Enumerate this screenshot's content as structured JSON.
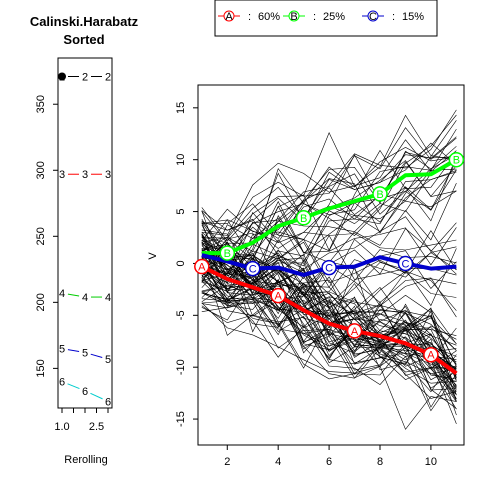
{
  "chart_data": [
    {
      "type": "line",
      "title": "Calinski.Harabatz",
      "subtitle": "Sorted",
      "xlabel": "Rerolling",
      "ylabel": "",
      "xlim": [
        1,
        3
      ],
      "ylim": [
        120,
        385
      ],
      "x_ticks": [
        "1.0",
        "2.5"
      ],
      "y_ticks": [
        "150",
        "200",
        "250",
        "300",
        "350"
      ],
      "x": [
        1,
        2,
        3
      ],
      "series": [
        {
          "label": "2",
          "color": "#000000",
          "values": [
            371,
            371,
            371
          ]
        },
        {
          "label": "3",
          "color": "#ff0000",
          "values": [
            297,
            297,
            297
          ]
        },
        {
          "label": "4",
          "color": "#00cc00",
          "values": [
            207,
            204,
            204
          ]
        },
        {
          "label": "5",
          "color": "#0000cc",
          "values": [
            165,
            162,
            157
          ]
        },
        {
          "label": "6",
          "color": "#00cccc",
          "values": [
            140,
            133,
            125
          ]
        }
      ]
    },
    {
      "type": "line",
      "title": "",
      "xlabel": "",
      "ylabel": "V",
      "xlim": [
        0.85,
        11.3
      ],
      "ylim": [
        -17.5,
        17.2
      ],
      "x_ticks": [
        "2",
        "4",
        "6",
        "8",
        "10"
      ],
      "y_ticks": [
        "-15",
        "-10",
        "-5",
        "0",
        "5",
        "10",
        "15"
      ],
      "x": [
        1,
        2,
        3,
        4,
        5,
        6,
        7,
        8,
        9,
        10,
        11
      ],
      "legend": {
        "position": "top",
        "entries": [
          {
            "letter": "A",
            "text": "60%",
            "color": "#ff0000"
          },
          {
            "letter": "B",
            "text": "25%",
            "color": "#00ff00"
          },
          {
            "letter": "C",
            "text": "15%",
            "color": "#0000cc"
          }
        ]
      },
      "series": [
        {
          "name": "A",
          "color": "#ff0000",
          "marked_at": [
            1,
            4,
            7,
            10
          ],
          "values": [
            -0.3,
            -1.5,
            -2.3,
            -3.1,
            -4.5,
            -5.8,
            -6.5,
            -7.0,
            -7.7,
            -8.8,
            -10.6
          ]
        },
        {
          "name": "B",
          "color": "#00ff00",
          "marked_at": [
            2,
            5,
            8,
            11
          ],
          "values": [
            1.0,
            1.0,
            2.0,
            3.6,
            4.4,
            5.3,
            6.0,
            6.7,
            8.5,
            8.6,
            10.0
          ]
        },
        {
          "name": "C",
          "color": "#0000cc",
          "marked_at": [
            3,
            6,
            9
          ],
          "values": [
            0.8,
            0.2,
            -0.5,
            -0.4,
            -1.1,
            -0.4,
            -0.3,
            0.6,
            0.0,
            -0.5,
            -0.3
          ]
        }
      ],
      "background_trajectories": "many thin black individual trajectories spread around the three group means"
    }
  ]
}
